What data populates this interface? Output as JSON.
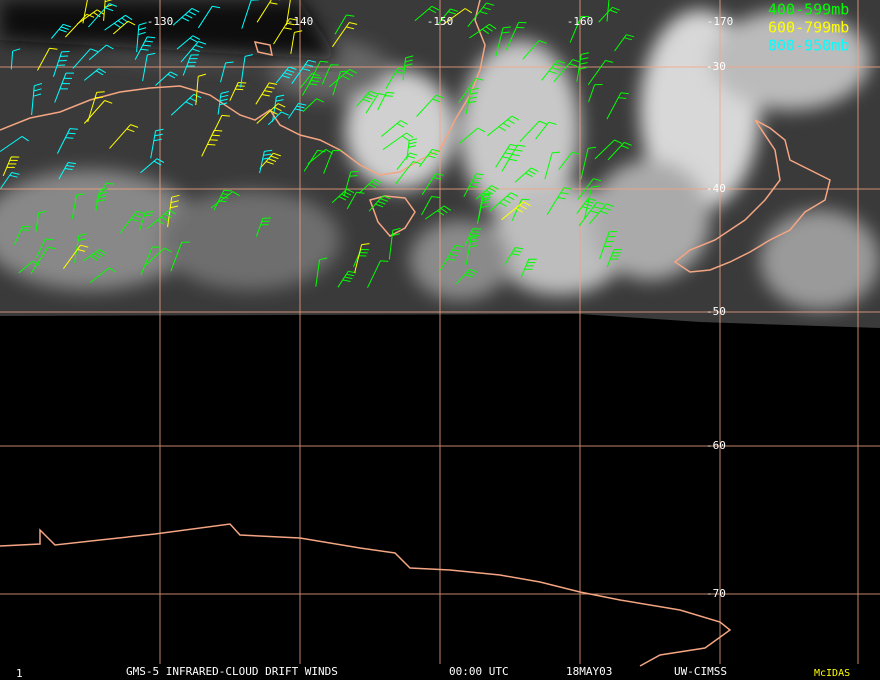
{
  "map": {
    "longitude_labels": [
      "-130",
      "-140",
      "-150",
      "-160",
      "-170"
    ],
    "latitude_labels": [
      "-30",
      "-40",
      "-50",
      "-60",
      "-70"
    ],
    "legend": [
      "400-599mb",
      "600-799mb",
      "800-950mb"
    ]
  },
  "footer": {
    "frame": "1",
    "product": "GMS-5 INFRARED-CLOUD DRIFT WINDS",
    "time": "00:00 UTC",
    "date": "18MAY03",
    "source": "UW-CIMSS",
    "software": "McIDAS"
  }
}
